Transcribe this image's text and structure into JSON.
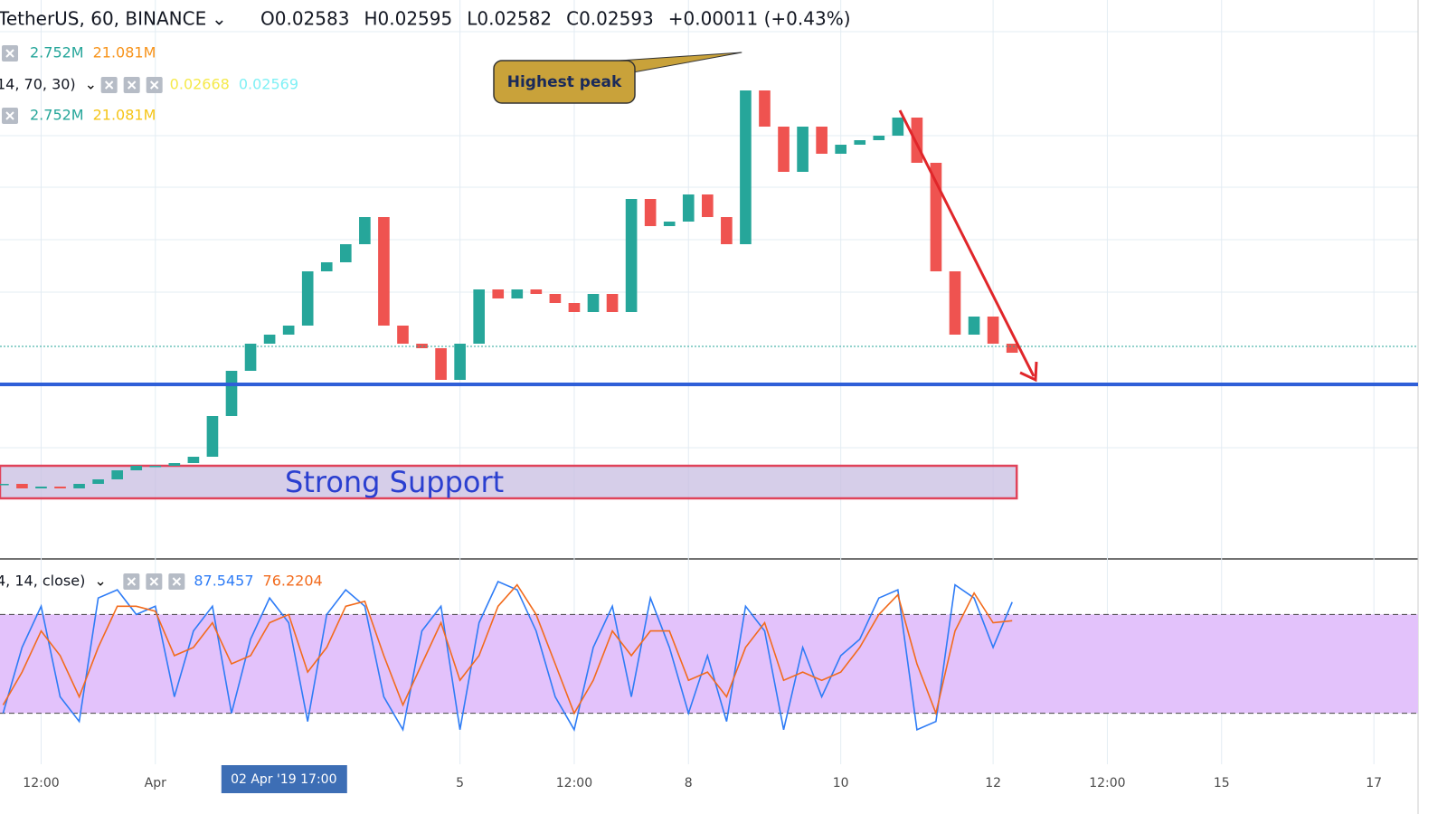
{
  "chart_data": {
    "type": "candlestick",
    "symbol": "TetherUS, 60, BINANCE",
    "ohlc_labels": [
      "O",
      "H",
      "L",
      "C"
    ],
    "ohlc": [
      0.02583,
      0.02595,
      0.02582,
      0.02593
    ],
    "change": "+0.00011 (+0.43%)",
    "indicator_rows": [
      {
        "values": [
          "2.752M",
          "21.081M"
        ],
        "colors": [
          "#26a69a",
          "#f7931a"
        ]
      },
      {
        "label": "14, 70, 30)",
        "values": [
          0.02668,
          0.02569
        ],
        "colors": [
          "#f5e94a",
          "#7ff0f5"
        ]
      },
      {
        "values": [
          "2.752M",
          "21.081M"
        ],
        "colors": [
          "#26a69a",
          "#f5c518"
        ]
      }
    ],
    "x": [
      -1,
      -0.75,
      -0.5,
      -0.25,
      0,
      0.25,
      0.5,
      0.75,
      1,
      1.25,
      1.5,
      1.75,
      2,
      2.25,
      2.5,
      2.75,
      3,
      3.25,
      3.5,
      3.75,
      4,
      4.25,
      4.5,
      4.75,
      5,
      5.25,
      5.5,
      5.75,
      6,
      6.25,
      6.5,
      6.75,
      7,
      7.25,
      7.5,
      7.75,
      8,
      8.25,
      8.5,
      8.75,
      9,
      9.25,
      9.5,
      9.75,
      10,
      10.25,
      10.5,
      10.75,
      11,
      11.25,
      11.5,
      11.75,
      12,
      12.25
    ],
    "close": [
      0.025626,
      0.025616,
      0.02562,
      0.025616,
      0.025626,
      0.025636,
      0.025656,
      0.025666,
      0.025666,
      0.025672,
      0.025686,
      0.025776,
      0.025876,
      0.025936,
      0.025956,
      0.025976,
      0.026096,
      0.026116,
      0.026156,
      0.026216,
      0.025976,
      0.025936,
      0.025926,
      0.025856,
      0.025936,
      0.026056,
      0.026036,
      0.026056,
      0.026046,
      0.026026,
      0.026006,
      0.026046,
      0.026006,
      0.026256,
      0.026196,
      0.026206,
      0.026266,
      0.026216,
      0.026156,
      0.026496,
      0.026416,
      0.026316,
      0.026416,
      0.026356,
      0.026376,
      0.026386,
      0.026396,
      0.026436,
      0.026336,
      0.026096,
      0.025956,
      0.025996,
      0.025936,
      0.025916
    ],
    "up_color": "#26a69a",
    "down_color": "#ef5350",
    "xlim": [
      -1.04,
      17.58
    ],
    "ylim": [
      0.02558,
      0.02658
    ],
    "xticks": [
      {
        "value": -0.5,
        "label": "12:00"
      },
      {
        "value": 1,
        "label": "Apr"
      },
      5,
      {
        "value": 6.5,
        "label": "12:00"
      },
      8,
      10,
      12,
      {
        "value": 13.5,
        "label": "12:00"
      },
      15,
      17
    ],
    "support_level": 0.025846,
    "support_color": "#2f5fd8",
    "zone": {
      "label": "Strong Support",
      "xlim": [
        -1.04,
        12.31
      ],
      "ylim": [
        0.025594,
        0.025666
      ]
    },
    "annotation": {
      "text": "Highest peak",
      "x": 8.7,
      "y": 0.02658
    },
    "crosshair": {
      "x": 2.71,
      "label": "02 Apr '19 17:00"
    },
    "stochastic": {
      "label": "4, 14, close)",
      "ylim": [
        0,
        100
      ],
      "band": [
        20,
        80
      ],
      "series": [
        {
          "color": "#2e7cf6",
          "values": [
            20,
            60,
            85,
            30,
            15,
            90,
            95,
            80,
            85,
            30,
            70,
            85,
            20,
            65,
            90,
            75,
            15,
            80,
            95,
            85,
            30,
            10,
            70,
            85,
            10,
            75,
            100,
            95,
            70,
            30,
            10,
            60,
            85,
            30,
            90,
            60,
            20,
            55,
            15,
            85,
            70,
            10,
            60,
            30,
            55,
            65,
            90,
            95,
            10,
            15,
            98,
            90,
            60,
            87.5457
          ]
        },
        {
          "color": "#f26b1d",
          "values": [
            25,
            45,
            70,
            55,
            30,
            60,
            85,
            85,
            82,
            55,
            60,
            75,
            50,
            55,
            75,
            80,
            45,
            60,
            85,
            88,
            55,
            25,
            50,
            75,
            40,
            55,
            85,
            98,
            80,
            50,
            20,
            40,
            70,
            55,
            70,
            70,
            40,
            45,
            30,
            60,
            75,
            40,
            45,
            40,
            45,
            60,
            80,
            92,
            50,
            20,
            70,
            93,
            75,
            76.2204
          ]
        }
      ]
    }
  }
}
